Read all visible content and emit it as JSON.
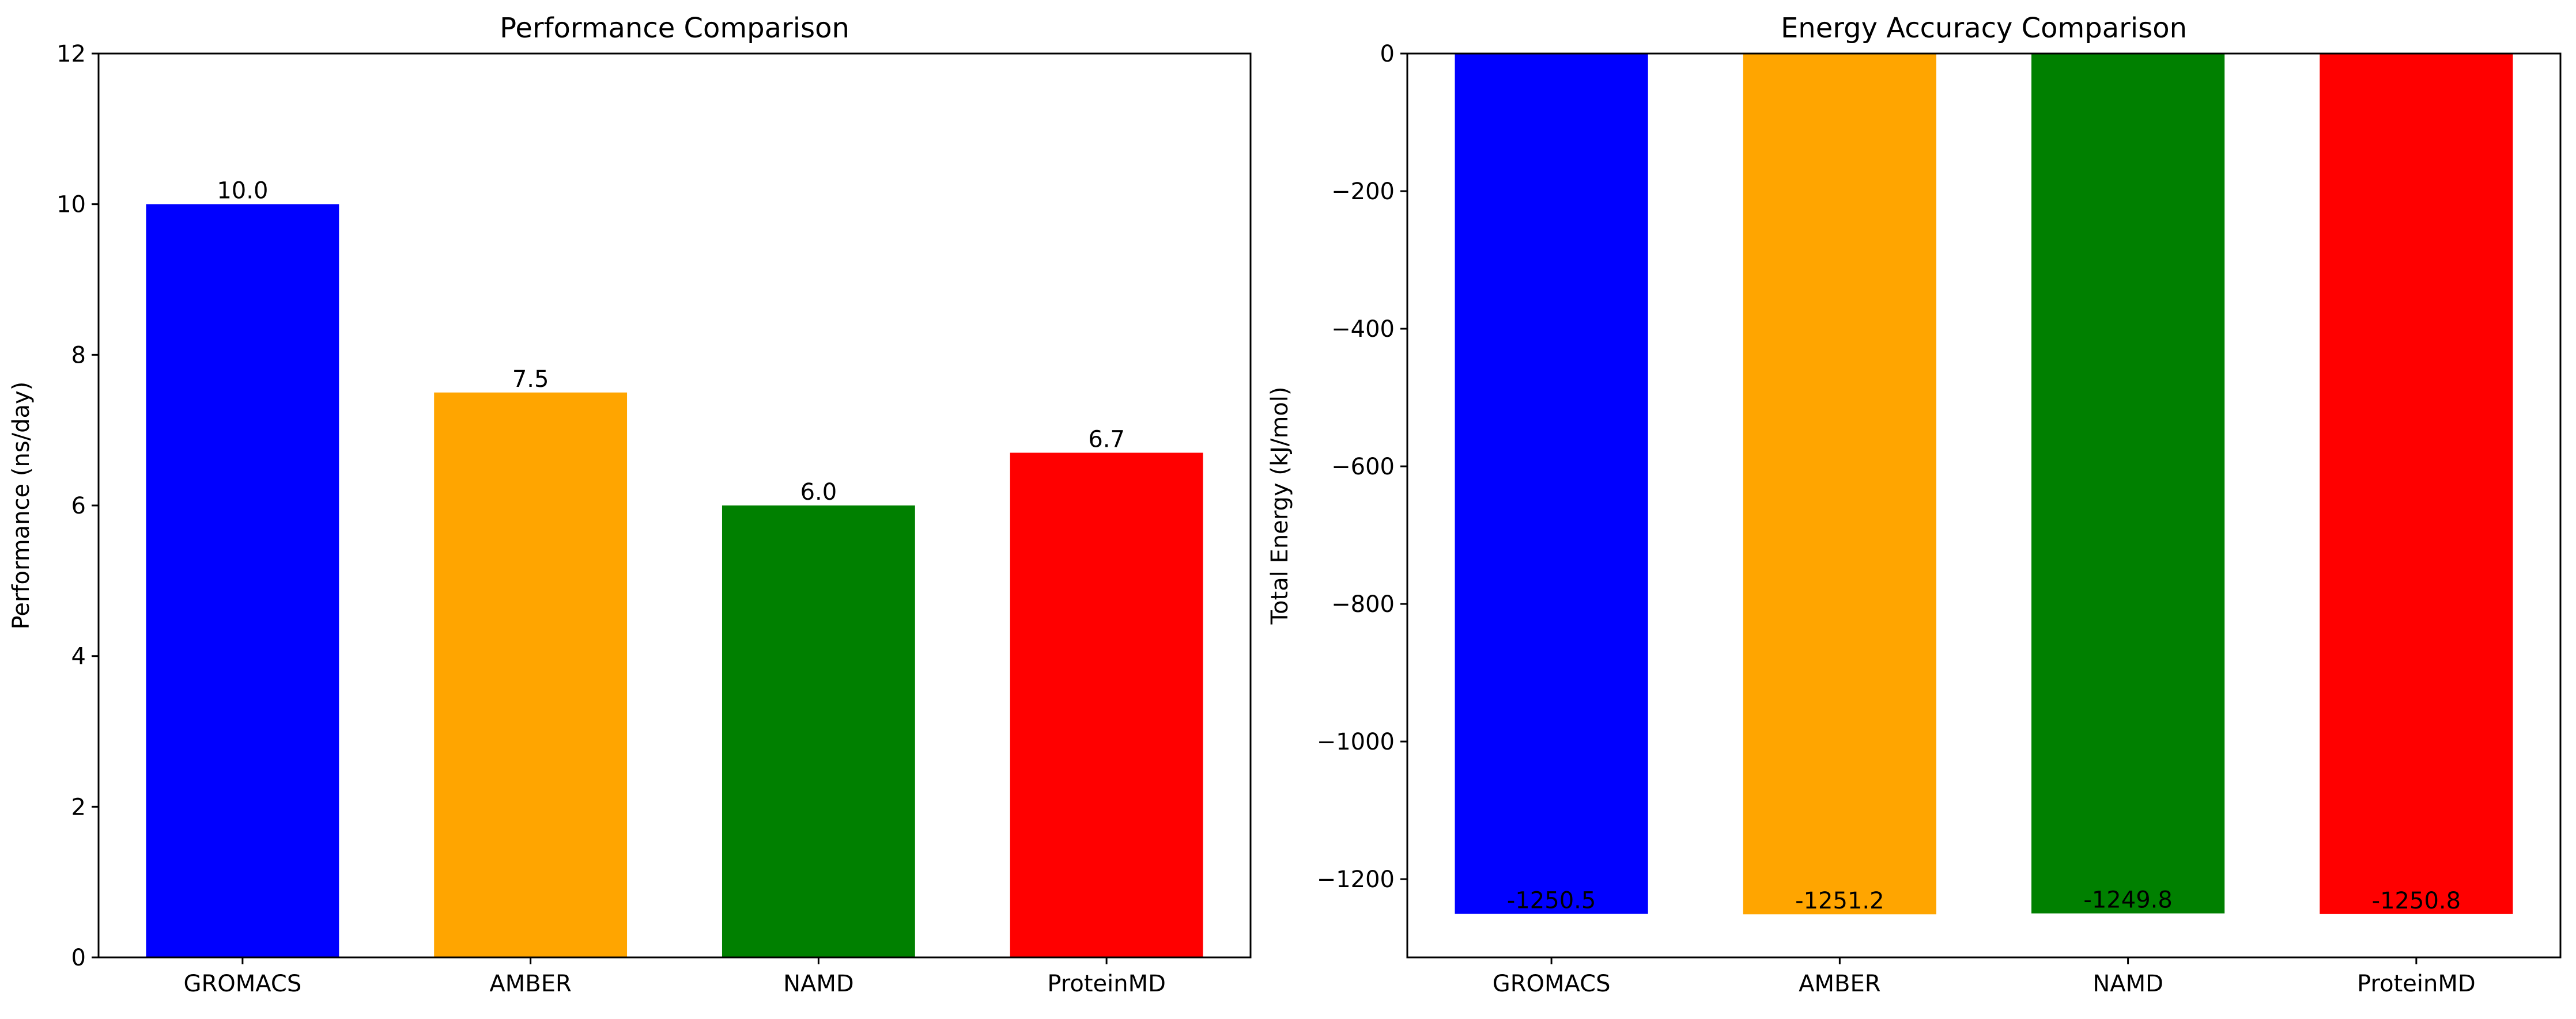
{
  "chart_data": [
    {
      "type": "bar",
      "title": "Performance Comparison",
      "xlabel": "",
      "ylabel": "Performance (ns/day)",
      "categories": [
        "GROMACS",
        "AMBER",
        "NAMD",
        "ProteinMD"
      ],
      "values": [
        10.0,
        7.5,
        6.0,
        6.7
      ],
      "value_labels": [
        "10.0",
        "7.5",
        "6.0",
        "6.7"
      ],
      "colors": [
        "#0000ff",
        "#ffa500",
        "#008000",
        "#ff0000"
      ],
      "ylim": [
        0,
        12
      ],
      "yticks": [
        0,
        2,
        4,
        6,
        8,
        10,
        12
      ],
      "ytick_labels": [
        "0",
        "2",
        "4",
        "6",
        "8",
        "10",
        "12"
      ],
      "grid": false,
      "legend": null
    },
    {
      "type": "bar",
      "title": "Energy Accuracy Comparison",
      "xlabel": "",
      "ylabel": "Total Energy (kJ/mol)",
      "categories": [
        "GROMACS",
        "AMBER",
        "NAMD",
        "ProteinMD"
      ],
      "values": [
        -1250.5,
        -1251.2,
        -1249.8,
        -1250.8
      ],
      "value_labels": [
        "-1250.5",
        "-1251.2",
        "-1249.8",
        "-1250.8"
      ],
      "colors": [
        "#0000ff",
        "#ffa500",
        "#008000",
        "#ff0000"
      ],
      "ylim": [
        -1313.76,
        0
      ],
      "yticks": [
        0,
        -200,
        -400,
        -600,
        -800,
        -1000,
        -1200
      ],
      "ytick_labels": [
        "0",
        "−200",
        "−400",
        "−600",
        "−800",
        "−1000",
        "−1200"
      ],
      "grid": false,
      "legend": null
    }
  ]
}
